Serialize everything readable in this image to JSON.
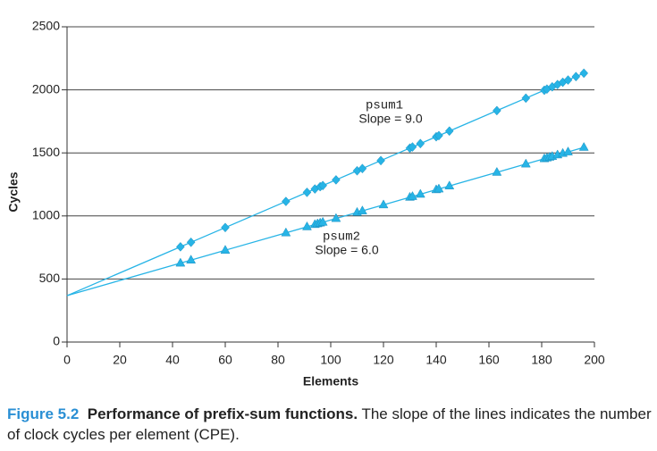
{
  "chart_data": {
    "type": "scatter",
    "x_label": "Elements",
    "y_label": "Cycles",
    "xlim": [
      0,
      200
    ],
    "xticks": [
      0,
      20,
      40,
      60,
      80,
      100,
      120,
      140,
      160,
      180,
      200
    ],
    "ylim": [
      0,
      2500
    ],
    "yticks": [
      0,
      500,
      1000,
      1500,
      2000,
      2500
    ],
    "grid": true,
    "series": [
      {
        "name": "psum1",
        "color": "#27b4e6",
        "marker": "diamond",
        "intercept": 368,
        "x": [
          43,
          47,
          60,
          83,
          91,
          94,
          96,
          97,
          102,
          110,
          112,
          119,
          130,
          131,
          134,
          140,
          141,
          145,
          163,
          174,
          181,
          182,
          184,
          186,
          188,
          190,
          193,
          196
        ],
        "values": [
          755,
          791,
          908,
          1115,
          1187,
          1214,
          1232,
          1241,
          1286,
          1358,
          1376,
          1439,
          1538,
          1547,
          1574,
          1628,
          1637,
          1673,
          1835,
          1934,
          1997,
          2006,
          2024,
          2042,
          2060,
          2078,
          2105,
          2132
        ]
      },
      {
        "name": "psum2",
        "color": "#27b4e6",
        "marker": "triangle",
        "intercept": 368,
        "x": [
          43,
          47,
          60,
          83,
          91,
          94,
          95,
          96,
          97,
          102,
          110,
          112,
          120,
          130,
          131,
          134,
          140,
          141,
          145,
          163,
          174,
          181,
          182,
          183,
          184,
          186,
          188,
          190,
          196
        ],
        "values": [
          626,
          650,
          728,
          866,
          914,
          932,
          938,
          944,
          950,
          980,
          1028,
          1040,
          1088,
          1148,
          1154,
          1172,
          1208,
          1214,
          1238,
          1346,
          1412,
          1454,
          1460,
          1466,
          1472,
          1484,
          1496,
          1508,
          1544
        ]
      }
    ],
    "annotations": [
      "Slope = 9.0",
      "Slope = 6.0"
    ],
    "caption": {
      "label": "Figure 5.2",
      "title": "Performance of prefix-sum functions.",
      "text": "The slope of the lines indicates the number of clock cycles per element (CPE)."
    }
  }
}
